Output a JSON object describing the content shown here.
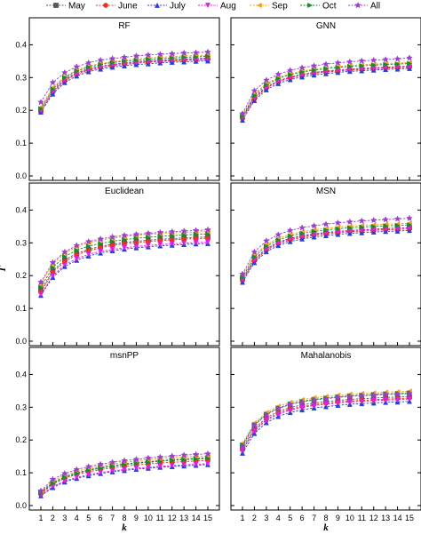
{
  "chart_data": {
    "type": "line",
    "x": [
      1,
      2,
      3,
      4,
      5,
      6,
      7,
      8,
      9,
      10,
      11,
      12,
      13,
      14,
      15
    ],
    "xlabel": "k",
    "ylabel": "Γ",
    "ylim": [
      0,
      0.45
    ],
    "yticks": [
      "0.0",
      "0.1",
      "0.2",
      "0.3",
      "0.4"
    ],
    "legend_position": "top",
    "series_styles": [
      {
        "name": "May",
        "color": "#555555",
        "marker": "square"
      },
      {
        "name": "June",
        "color": "#e8312a",
        "marker": "circle"
      },
      {
        "name": "July",
        "color": "#2a3fcf",
        "marker": "triangle-up"
      },
      {
        "name": "Aug",
        "color": "#e020e0",
        "marker": "triangle-down"
      },
      {
        "name": "Sep",
        "color": "#f0a020",
        "marker": "triangle-left"
      },
      {
        "name": "Oct",
        "color": "#1a8a2a",
        "marker": "triangle-right"
      },
      {
        "name": "All",
        "color": "#9a40d0",
        "marker": "star"
      }
    ],
    "panels": [
      {
        "title": "RF",
        "series": [
          {
            "name": "May",
            "values": [
              0.2,
              0.26,
              0.295,
              0.315,
              0.327,
              0.335,
              0.34,
              0.345,
              0.348,
              0.351,
              0.353,
              0.355,
              0.357,
              0.358,
              0.36
            ]
          },
          {
            "name": "June",
            "values": [
              0.195,
              0.255,
              0.29,
              0.31,
              0.322,
              0.33,
              0.336,
              0.34,
              0.344,
              0.347,
              0.349,
              0.351,
              0.352,
              0.354,
              0.355
            ]
          },
          {
            "name": "July",
            "values": [
              0.195,
              0.25,
              0.285,
              0.305,
              0.318,
              0.326,
              0.332,
              0.336,
              0.34,
              0.342,
              0.345,
              0.347,
              0.348,
              0.35,
              0.351
            ]
          },
          {
            "name": "Aug",
            "values": [
              0.2,
              0.258,
              0.292,
              0.312,
              0.325,
              0.333,
              0.339,
              0.343,
              0.346,
              0.349,
              0.351,
              0.353,
              0.355,
              0.356,
              0.357
            ]
          },
          {
            "name": "Sep",
            "values": [
              0.21,
              0.27,
              0.303,
              0.323,
              0.335,
              0.343,
              0.349,
              0.353,
              0.357,
              0.36,
              0.362,
              0.364,
              0.366,
              0.367,
              0.368
            ]
          },
          {
            "name": "Oct",
            "values": [
              0.205,
              0.265,
              0.3,
              0.32,
              0.332,
              0.34,
              0.346,
              0.35,
              0.353,
              0.356,
              0.358,
              0.36,
              0.362,
              0.363,
              0.365
            ]
          },
          {
            "name": "All",
            "values": [
              0.225,
              0.285,
              0.315,
              0.333,
              0.345,
              0.353,
              0.358,
              0.362,
              0.366,
              0.369,
              0.371,
              0.373,
              0.375,
              0.376,
              0.378
            ]
          }
        ]
      },
      {
        "title": "GNN",
        "series": [
          {
            "name": "May",
            "values": [
              0.18,
              0.24,
              0.272,
              0.29,
              0.302,
              0.31,
              0.316,
              0.32,
              0.323,
              0.326,
              0.328,
              0.33,
              0.332,
              0.333,
              0.335
            ]
          },
          {
            "name": "June",
            "values": [
              0.175,
              0.235,
              0.268,
              0.287,
              0.299,
              0.307,
              0.313,
              0.317,
              0.32,
              0.323,
              0.325,
              0.327,
              0.329,
              0.33,
              0.332
            ]
          },
          {
            "name": "July",
            "values": [
              0.17,
              0.23,
              0.263,
              0.282,
              0.294,
              0.302,
              0.308,
              0.312,
              0.316,
              0.319,
              0.321,
              0.323,
              0.325,
              0.326,
              0.328
            ]
          },
          {
            "name": "Aug",
            "values": [
              0.178,
              0.238,
              0.27,
              0.289,
              0.301,
              0.309,
              0.315,
              0.319,
              0.322,
              0.325,
              0.327,
              0.329,
              0.331,
              0.332,
              0.334
            ]
          },
          {
            "name": "Sep",
            "values": [
              0.185,
              0.25,
              0.282,
              0.3,
              0.312,
              0.32,
              0.326,
              0.33,
              0.334,
              0.337,
              0.339,
              0.341,
              0.343,
              0.344,
              0.346
            ]
          },
          {
            "name": "Oct",
            "values": [
              0.182,
              0.245,
              0.278,
              0.297,
              0.309,
              0.317,
              0.323,
              0.327,
              0.331,
              0.334,
              0.336,
              0.338,
              0.34,
              0.341,
              0.343
            ]
          },
          {
            "name": "All",
            "values": [
              0.19,
              0.26,
              0.292,
              0.31,
              0.322,
              0.33,
              0.336,
              0.341,
              0.345,
              0.348,
              0.351,
              0.353,
              0.355,
              0.357,
              0.36
            ]
          }
        ]
      },
      {
        "title": "Euclidean",
        "series": [
          {
            "name": "May",
            "values": [
              0.155,
              0.215,
              0.248,
              0.268,
              0.28,
              0.289,
              0.296,
              0.301,
              0.305,
              0.308,
              0.311,
              0.313,
              0.315,
              0.317,
              0.318
            ]
          },
          {
            "name": "June",
            "values": [
              0.15,
              0.21,
              0.243,
              0.263,
              0.276,
              0.285,
              0.292,
              0.297,
              0.301,
              0.304,
              0.307,
              0.309,
              0.311,
              0.313,
              0.314
            ]
          },
          {
            "name": "July",
            "values": [
              0.14,
              0.195,
              0.228,
              0.247,
              0.26,
              0.269,
              0.276,
              0.281,
              0.285,
              0.288,
              0.291,
              0.293,
              0.295,
              0.297,
              0.298
            ]
          },
          {
            "name": "Aug",
            "values": [
              0.142,
              0.2,
              0.233,
              0.252,
              0.265,
              0.274,
              0.28,
              0.285,
              0.289,
              0.292,
              0.295,
              0.297,
              0.299,
              0.301,
              0.302
            ]
          },
          {
            "name": "Sep",
            "values": [
              0.175,
              0.235,
              0.268,
              0.288,
              0.3,
              0.308,
              0.314,
              0.319,
              0.323,
              0.326,
              0.328,
              0.33,
              0.332,
              0.333,
              0.335
            ]
          },
          {
            "name": "Oct",
            "values": [
              0.165,
              0.225,
              0.258,
              0.278,
              0.29,
              0.298,
              0.305,
              0.31,
              0.314,
              0.317,
              0.32,
              0.322,
              0.324,
              0.326,
              0.327
            ]
          },
          {
            "name": "All",
            "values": [
              0.18,
              0.24,
              0.272,
              0.292,
              0.304,
              0.312,
              0.318,
              0.323,
              0.326,
              0.329,
              0.332,
              0.334,
              0.336,
              0.338,
              0.34
            ]
          }
        ]
      },
      {
        "title": "MSN",
        "series": [
          {
            "name": "May",
            "values": [
              0.19,
              0.25,
              0.283,
              0.302,
              0.314,
              0.322,
              0.328,
              0.332,
              0.335,
              0.338,
              0.34,
              0.342,
              0.344,
              0.345,
              0.347
            ]
          },
          {
            "name": "June",
            "values": [
              0.185,
              0.245,
              0.278,
              0.297,
              0.309,
              0.317,
              0.323,
              0.327,
              0.331,
              0.334,
              0.336,
              0.338,
              0.34,
              0.341,
              0.343
            ]
          },
          {
            "name": "July",
            "values": [
              0.18,
              0.24,
              0.273,
              0.292,
              0.304,
              0.312,
              0.318,
              0.322,
              0.326,
              0.329,
              0.331,
              0.333,
              0.335,
              0.336,
              0.338
            ]
          },
          {
            "name": "Aug",
            "values": [
              0.188,
              0.248,
              0.281,
              0.3,
              0.312,
              0.32,
              0.326,
              0.33,
              0.334,
              0.337,
              0.339,
              0.341,
              0.343,
              0.344,
              0.346
            ]
          },
          {
            "name": "Sep",
            "values": [
              0.2,
              0.262,
              0.295,
              0.314,
              0.326,
              0.334,
              0.34,
              0.344,
              0.348,
              0.351,
              0.353,
              0.355,
              0.357,
              0.358,
              0.36
            ]
          },
          {
            "name": "Oct",
            "values": [
              0.195,
              0.257,
              0.29,
              0.309,
              0.321,
              0.329,
              0.335,
              0.339,
              0.343,
              0.346,
              0.348,
              0.35,
              0.352,
              0.353,
              0.355
            ]
          },
          {
            "name": "All",
            "values": [
              0.205,
              0.272,
              0.306,
              0.325,
              0.338,
              0.346,
              0.352,
              0.357,
              0.361,
              0.364,
              0.367,
              0.369,
              0.371,
              0.373,
              0.375
            ]
          }
        ]
      },
      {
        "title": "msnPP",
        "series": [
          {
            "name": "May",
            "values": [
              0.04,
              0.07,
              0.088,
              0.1,
              0.109,
              0.116,
              0.122,
              0.127,
              0.131,
              0.134,
              0.137,
              0.14,
              0.142,
              0.144,
              0.146
            ]
          },
          {
            "name": "June",
            "values": [
              0.035,
              0.065,
              0.083,
              0.095,
              0.103,
              0.11,
              0.115,
              0.12,
              0.124,
              0.127,
              0.13,
              0.132,
              0.134,
              0.136,
              0.138
            ]
          },
          {
            "name": "July",
            "values": [
              0.03,
              0.055,
              0.072,
              0.083,
              0.091,
              0.098,
              0.103,
              0.107,
              0.111,
              0.114,
              0.117,
              0.119,
              0.121,
              0.123,
              0.125
            ]
          },
          {
            "name": "Aug",
            "values": [
              0.032,
              0.058,
              0.075,
              0.086,
              0.094,
              0.101,
              0.106,
              0.11,
              0.114,
              0.117,
              0.12,
              0.122,
              0.124,
              0.126,
              0.128
            ]
          },
          {
            "name": "Sep",
            "values": [
              0.042,
              0.075,
              0.093,
              0.105,
              0.114,
              0.121,
              0.127,
              0.132,
              0.136,
              0.14,
              0.143,
              0.146,
              0.148,
              0.15,
              0.152
            ]
          },
          {
            "name": "Oct",
            "values": [
              0.038,
              0.068,
              0.086,
              0.098,
              0.107,
              0.114,
              0.12,
              0.125,
              0.129,
              0.132,
              0.135,
              0.138,
              0.14,
              0.142,
              0.144
            ]
          },
          {
            "name": "All",
            "values": [
              0.045,
              0.08,
              0.098,
              0.11,
              0.119,
              0.126,
              0.132,
              0.137,
              0.141,
              0.145,
              0.148,
              0.151,
              0.154,
              0.156,
              0.158
            ]
          }
        ]
      },
      {
        "title": "Mahalanobis",
        "series": [
          {
            "name": "May",
            "values": [
              0.175,
              0.235,
              0.268,
              0.287,
              0.299,
              0.307,
              0.313,
              0.317,
              0.321,
              0.324,
              0.326,
              0.328,
              0.33,
              0.331,
              0.333
            ]
          },
          {
            "name": "June",
            "values": [
              0.17,
              0.23,
              0.263,
              0.282,
              0.294,
              0.302,
              0.308,
              0.312,
              0.316,
              0.319,
              0.321,
              0.323,
              0.325,
              0.326,
              0.328
            ]
          },
          {
            "name": "July",
            "values": [
              0.16,
              0.22,
              0.253,
              0.272,
              0.284,
              0.292,
              0.298,
              0.302,
              0.306,
              0.309,
              0.311,
              0.313,
              0.315,
              0.316,
              0.318
            ]
          },
          {
            "name": "Aug",
            "values": [
              0.168,
              0.228,
              0.26,
              0.279,
              0.291,
              0.299,
              0.305,
              0.309,
              0.313,
              0.316,
              0.318,
              0.32,
              0.322,
              0.323,
              0.325
            ]
          },
          {
            "name": "Sep",
            "values": [
              0.19,
              0.252,
              0.284,
              0.303,
              0.315,
              0.323,
              0.329,
              0.333,
              0.337,
              0.34,
              0.342,
              0.344,
              0.346,
              0.347,
              0.349
            ]
          },
          {
            "name": "Oct",
            "values": [
              0.185,
              0.247,
              0.279,
              0.298,
              0.31,
              0.318,
              0.324,
              0.328,
              0.332,
              0.335,
              0.337,
              0.339,
              0.341,
              0.342,
              0.344
            ]
          },
          {
            "name": "All",
            "values": [
              0.18,
              0.245,
              0.277,
              0.296,
              0.308,
              0.316,
              0.322,
              0.326,
              0.33,
              0.333,
              0.335,
              0.337,
              0.339,
              0.34,
              0.342
            ]
          }
        ]
      }
    ]
  }
}
